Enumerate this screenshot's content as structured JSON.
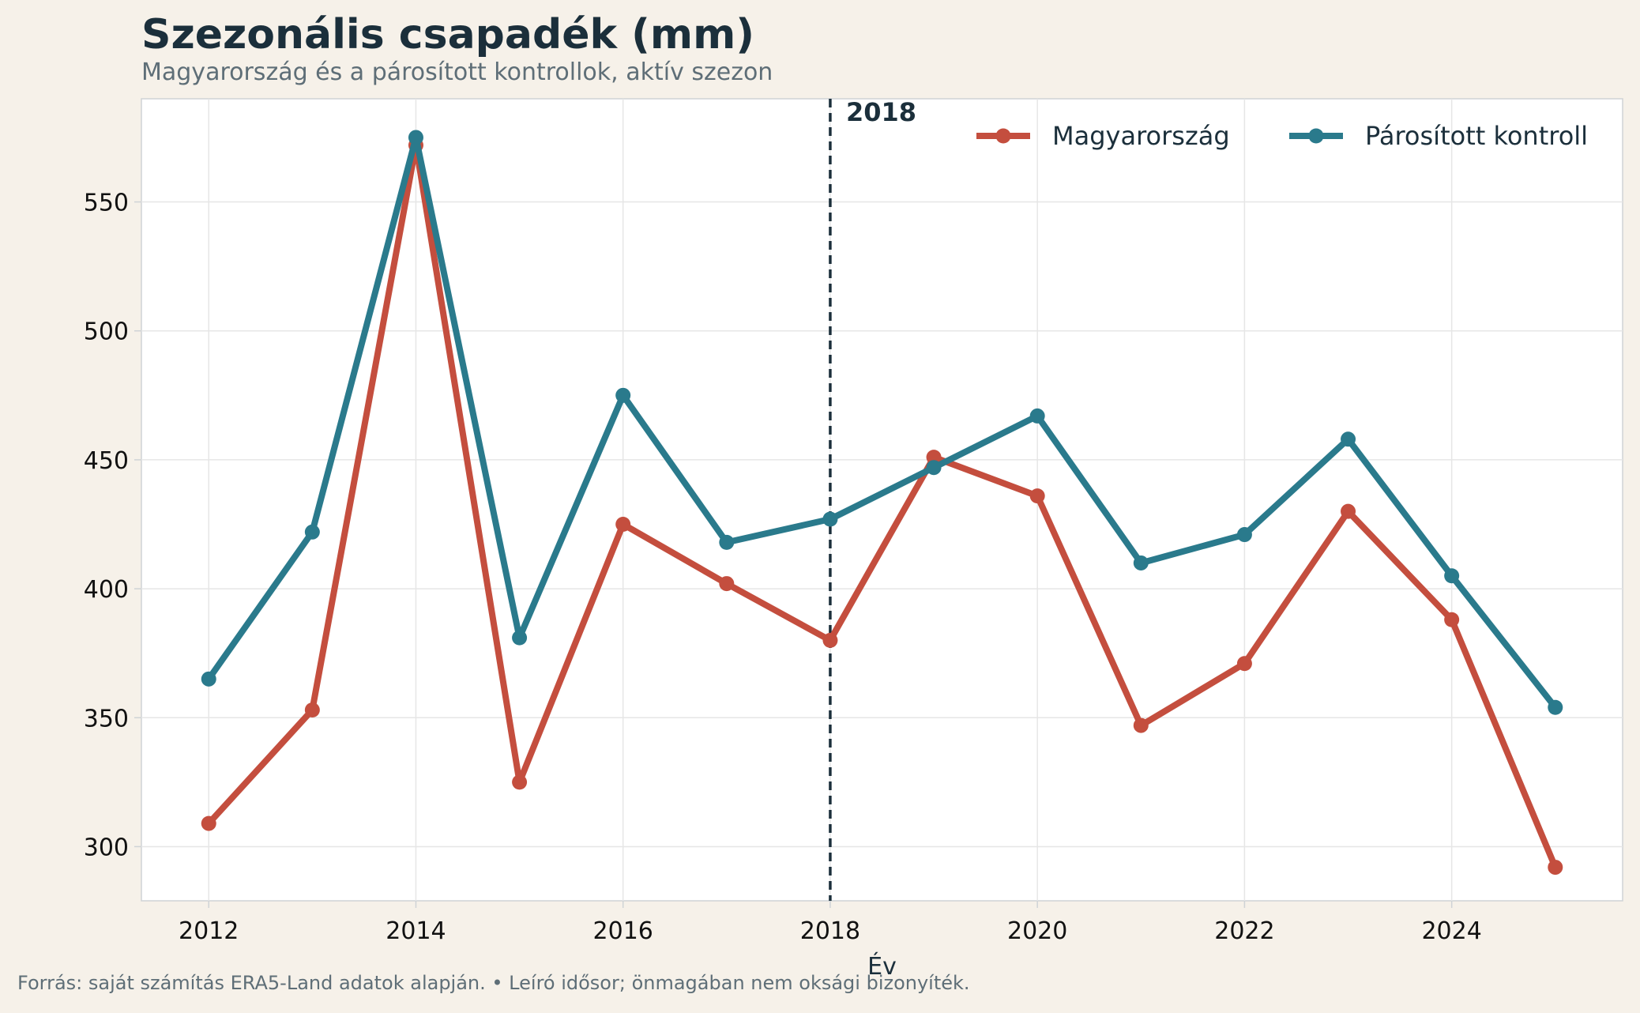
{
  "header": {
    "title": "Szezonális csapadék (mm)",
    "subtitle": "Magyarország és a párosított kontrollok, aktív szezon"
  },
  "footer": {
    "note": "Forrás: saját számítás ERA5-Land adatok alapján.  •  Leíró idősor; önmagában nem oksági bizonyíték."
  },
  "chart_data": {
    "type": "line",
    "title": "Szezonális csapadék (mm)",
    "subtitle": "Magyarország és a párosított kontrollok, aktív szezon",
    "xlabel": "Év",
    "ylabel": "",
    "x": [
      2012,
      2013,
      2014,
      2015,
      2016,
      2017,
      2018,
      2019,
      2020,
      2021,
      2022,
      2023,
      2024,
      2025
    ],
    "xlim": [
      2011.35,
      2025.65
    ],
    "ylim": [
      279,
      590
    ],
    "xticks": [
      2012,
      2014,
      2016,
      2018,
      2020,
      2022,
      2024
    ],
    "yticks": [
      300,
      350,
      400,
      450,
      500,
      550
    ],
    "grid": true,
    "legend": "top-right",
    "series": [
      {
        "name": "Magyarország",
        "color": "#c44e3e",
        "values": [
          309,
          353,
          572,
          325,
          425,
          402,
          380,
          451,
          436,
          347,
          371,
          430,
          388,
          292
        ]
      },
      {
        "name": "Párosított kontroll",
        "color": "#2a7a8c",
        "values": [
          365,
          422,
          575,
          381,
          475,
          418,
          427,
          447,
          467,
          410,
          421,
          458,
          405,
          354
        ]
      }
    ],
    "annotations": [
      {
        "type": "vline",
        "x": 2018,
        "label": "2018",
        "color": "#1b2f3b"
      }
    ]
  }
}
